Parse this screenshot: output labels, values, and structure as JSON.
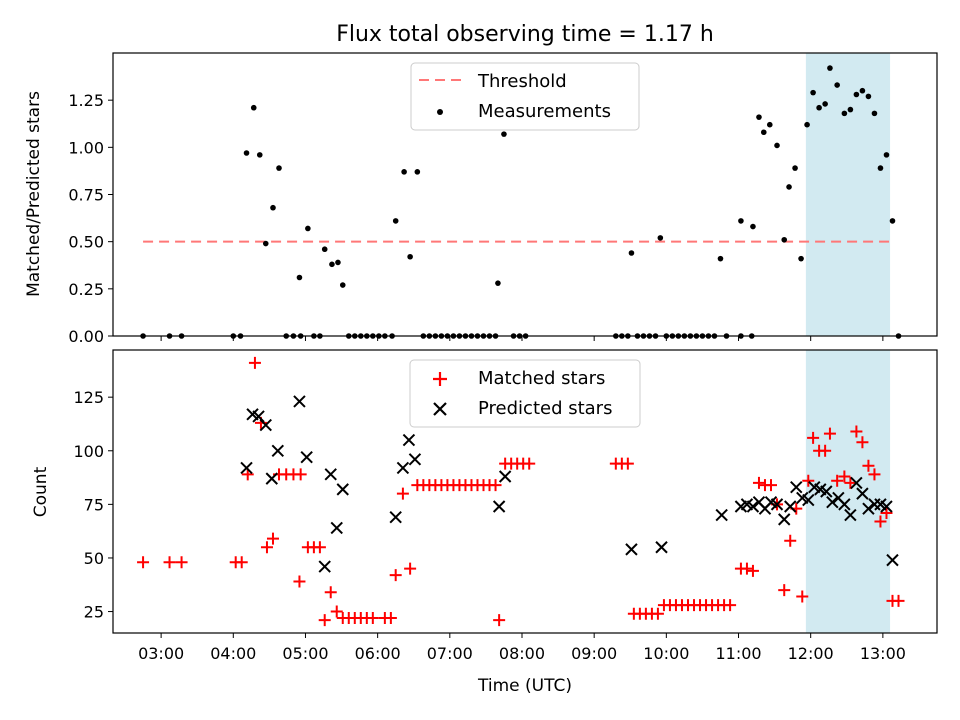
{
  "title": "Flux total observing time = 1.17 h",
  "colors": {
    "threshold": "#ff7777",
    "measurement": "#000000",
    "matched": "#ff0000",
    "predicted": "#000000",
    "highlight": "#add8e6"
  },
  "chart_data": [
    {
      "type": "scatter",
      "ylabel": "Matched/Predicted stars",
      "xlim": [
        "02:20",
        "13:45"
      ],
      "ylim": [
        0,
        1.5
      ],
      "yticks": [
        "0.00",
        "0.25",
        "0.50",
        "0.75",
        "1.00",
        "1.25"
      ],
      "legend": {
        "placement": "top-center",
        "entries": [
          "Threshold",
          "Measurements"
        ]
      },
      "threshold": {
        "name": "Threshold",
        "value": 0.5,
        "x_start": "02:45",
        "x_end": "13:10"
      },
      "highlight": {
        "x_start": "11:56",
        "x_end": "13:06"
      },
      "series": [
        {
          "name": "Measurements",
          "points": [
            [
              "02:45",
              0
            ],
            [
              "03:07",
              0
            ],
            [
              "03:17",
              0
            ],
            [
              "04:00",
              0
            ],
            [
              "04:06",
              0
            ],
            [
              "04:11",
              0.97
            ],
            [
              "04:17",
              1.21
            ],
            [
              "04:22",
              0.96
            ],
            [
              "04:27",
              0.49
            ],
            [
              "04:33",
              0.68
            ],
            [
              "04:38",
              0.89
            ],
            [
              "04:44",
              0
            ],
            [
              "04:50",
              0
            ],
            [
              "04:55",
              0.31
            ],
            [
              "04:56",
              0
            ],
            [
              "05:02",
              0.57
            ],
            [
              "05:07",
              0
            ],
            [
              "05:12",
              0
            ],
            [
              "05:16",
              0.46
            ],
            [
              "05:22",
              0.38
            ],
            [
              "05:27",
              0.39
            ],
            [
              "05:31",
              0.27
            ],
            [
              "05:36",
              0
            ],
            [
              "05:41",
              0
            ],
            [
              "05:46",
              0
            ],
            [
              "05:51",
              0
            ],
            [
              "05:56",
              0
            ],
            [
              "06:01",
              0
            ],
            [
              "06:06",
              0
            ],
            [
              "06:12",
              0
            ],
            [
              "06:15",
              0.61
            ],
            [
              "06:22",
              0.87
            ],
            [
              "06:27",
              0.42
            ],
            [
              "06:33",
              0.87
            ],
            [
              "06:38",
              0
            ],
            [
              "06:43",
              0
            ],
            [
              "06:48",
              0
            ],
            [
              "06:53",
              0
            ],
            [
              "06:58",
              0
            ],
            [
              "07:03",
              0
            ],
            [
              "07:08",
              0
            ],
            [
              "07:13",
              0
            ],
            [
              "07:18",
              0
            ],
            [
              "07:23",
              0
            ],
            [
              "07:28",
              0
            ],
            [
              "07:33",
              0
            ],
            [
              "07:38",
              0
            ],
            [
              "07:40",
              0.28
            ],
            [
              "07:45",
              1.07
            ],
            [
              "07:53",
              0
            ],
            [
              "07:58",
              0
            ],
            [
              "08:03",
              0
            ],
            [
              "09:18",
              0
            ],
            [
              "09:23",
              0
            ],
            [
              "09:28",
              0
            ],
            [
              "09:31",
              0.44
            ],
            [
              "09:36",
              0
            ],
            [
              "09:41",
              0
            ],
            [
              "09:46",
              0
            ],
            [
              "09:51",
              0
            ],
            [
              "09:55",
              0.52
            ],
            [
              "10:00",
              0
            ],
            [
              "10:05",
              0
            ],
            [
              "10:10",
              0
            ],
            [
              "10:15",
              0
            ],
            [
              "10:20",
              0
            ],
            [
              "10:25",
              0
            ],
            [
              "10:30",
              0
            ],
            [
              "10:35",
              0
            ],
            [
              "10:40",
              0
            ],
            [
              "10:45",
              0.41
            ],
            [
              "10:50",
              0
            ],
            [
              "11:02",
              0.61
            ],
            [
              "11:02",
              0
            ],
            [
              "11:11",
              0
            ],
            [
              "11:12",
              0.58
            ],
            [
              "11:17",
              1.16
            ],
            [
              "11:21",
              1.08
            ],
            [
              "11:26",
              1.12
            ],
            [
              "11:32",
              1.01
            ],
            [
              "11:38",
              0.51
            ],
            [
              "11:42",
              0.79
            ],
            [
              "11:47",
              0.89
            ],
            [
              "11:52",
              0.41
            ],
            [
              "11:57",
              1.12
            ],
            [
              "12:02",
              1.29
            ],
            [
              "12:07",
              1.21
            ],
            [
              "12:12",
              1.23
            ],
            [
              "12:16",
              1.42
            ],
            [
              "12:22",
              1.33
            ],
            [
              "12:28",
              1.18
            ],
            [
              "12:33",
              1.2
            ],
            [
              "12:38",
              1.28
            ],
            [
              "12:43",
              1.3
            ],
            [
              "12:48",
              1.27
            ],
            [
              "12:53",
              1.18
            ],
            [
              "12:58",
              0.89
            ],
            [
              "13:03",
              0.96
            ],
            [
              "13:08",
              0.61
            ],
            [
              "13:13",
              0
            ]
          ]
        }
      ]
    },
    {
      "type": "scatter",
      "xlabel": "Time (UTC)",
      "ylabel": "Count",
      "xlim": [
        "02:20",
        "13:45"
      ],
      "ylim": [
        15,
        147
      ],
      "xticks": [
        "03:00",
        "04:00",
        "05:00",
        "06:00",
        "07:00",
        "08:00",
        "09:00",
        "10:00",
        "11:00",
        "12:00",
        "13:00"
      ],
      "yticks": [
        "25",
        "50",
        "75",
        "100",
        "125"
      ],
      "legend": {
        "placement": "top-center",
        "entries": [
          "Matched stars",
          "Predicted stars"
        ]
      },
      "highlight": {
        "x_start": "11:56",
        "x_end": "13:06"
      },
      "series": [
        {
          "name": "Matched stars",
          "points": [
            [
              "02:45",
              48
            ],
            [
              "03:07",
              48
            ],
            [
              "03:17",
              48
            ],
            [
              "04:02",
              48
            ],
            [
              "04:07",
              48
            ],
            [
              "04:12",
              89
            ],
            [
              "04:18",
              141
            ],
            [
              "04:23",
              113
            ],
            [
              "04:28",
              55
            ],
            [
              "04:33",
              59
            ],
            [
              "04:38",
              89
            ],
            [
              "04:44",
              89
            ],
            [
              "04:50",
              89
            ],
            [
              "04:55",
              39
            ],
            [
              "04:56",
              89
            ],
            [
              "05:02",
              55
            ],
            [
              "05:07",
              55
            ],
            [
              "05:12",
              55
            ],
            [
              "05:16",
              21
            ],
            [
              "05:21",
              34
            ],
            [
              "05:26",
              25
            ],
            [
              "05:31",
              22
            ],
            [
              "05:36",
              22
            ],
            [
              "05:41",
              22
            ],
            [
              "05:46",
              22
            ],
            [
              "05:51",
              22
            ],
            [
              "05:56",
              22
            ],
            [
              "06:06",
              22
            ],
            [
              "06:11",
              22
            ],
            [
              "06:15",
              42
            ],
            [
              "06:21",
              80
            ],
            [
              "06:27",
              45
            ],
            [
              "06:33",
              84
            ],
            [
              "06:38",
              84
            ],
            [
              "06:43",
              84
            ],
            [
              "06:48",
              84
            ],
            [
              "06:53",
              84
            ],
            [
              "06:58",
              84
            ],
            [
              "07:03",
              84
            ],
            [
              "07:08",
              84
            ],
            [
              "07:13",
              84
            ],
            [
              "07:18",
              84
            ],
            [
              "07:23",
              84
            ],
            [
              "07:28",
              84
            ],
            [
              "07:33",
              84
            ],
            [
              "07:38",
              84
            ],
            [
              "07:41",
              21
            ],
            [
              "07:46",
              94
            ],
            [
              "07:51",
              94
            ],
            [
              "07:56",
              94
            ],
            [
              "08:01",
              94
            ],
            [
              "08:06",
              94
            ],
            [
              "09:18",
              94
            ],
            [
              "09:23",
              94
            ],
            [
              "09:28",
              94
            ],
            [
              "09:33",
              24
            ],
            [
              "09:38",
              24
            ],
            [
              "09:43",
              24
            ],
            [
              "09:48",
              24
            ],
            [
              "09:53",
              24
            ],
            [
              "09:58",
              28
            ],
            [
              "10:03",
              28
            ],
            [
              "10:08",
              28
            ],
            [
              "10:13",
              28
            ],
            [
              "10:18",
              28
            ],
            [
              "10:23",
              28
            ],
            [
              "10:28",
              28
            ],
            [
              "10:33",
              28
            ],
            [
              "10:38",
              28
            ],
            [
              "10:43",
              28
            ],
            [
              "10:48",
              28
            ],
            [
              "10:53",
              28
            ],
            [
              "11:02",
              45
            ],
            [
              "11:07",
              45
            ],
            [
              "11:12",
              44
            ],
            [
              "11:17",
              85
            ],
            [
              "11:22",
              84
            ],
            [
              "11:27",
              84
            ],
            [
              "11:32",
              75
            ],
            [
              "11:38",
              35
            ],
            [
              "11:43",
              58
            ],
            [
              "11:48",
              73
            ],
            [
              "11:53",
              32
            ],
            [
              "11:58",
              86
            ],
            [
              "12:02",
              106
            ],
            [
              "12:07",
              100
            ],
            [
              "12:12",
              100
            ],
            [
              "12:16",
              108
            ],
            [
              "12:22",
              86
            ],
            [
              "12:28",
              88
            ],
            [
              "12:33",
              85
            ],
            [
              "12:38",
              109
            ],
            [
              "12:43",
              104
            ],
            [
              "12:48",
              93
            ],
            [
              "12:53",
              89
            ],
            [
              "12:58",
              67
            ],
            [
              "13:03",
              71
            ],
            [
              "13:08",
              30
            ],
            [
              "13:13",
              30
            ]
          ]
        },
        {
          "name": "Predicted stars",
          "points": [
            [
              "04:11",
              92
            ],
            [
              "04:16",
              117
            ],
            [
              "04:21",
              116
            ],
            [
              "04:27",
              112
            ],
            [
              "04:32",
              87
            ],
            [
              "04:37",
              100
            ],
            [
              "04:55",
              123
            ],
            [
              "05:01",
              97
            ],
            [
              "05:16",
              46
            ],
            [
              "05:21",
              89
            ],
            [
              "05:26",
              64
            ],
            [
              "05:31",
              82
            ],
            [
              "06:15",
              69
            ],
            [
              "06:21",
              92
            ],
            [
              "06:26",
              105
            ],
            [
              "06:31",
              96
            ],
            [
              "07:41",
              74
            ],
            [
              "07:46",
              88
            ],
            [
              "09:31",
              54
            ],
            [
              "09:56",
              55
            ],
            [
              "10:46",
              70
            ],
            [
              "11:02",
              74
            ],
            [
              "11:07",
              75
            ],
            [
              "11:12",
              74
            ],
            [
              "11:17",
              76
            ],
            [
              "11:22",
              73
            ],
            [
              "11:27",
              76
            ],
            [
              "11:32",
              75
            ],
            [
              "11:38",
              68
            ],
            [
              "11:43",
              74
            ],
            [
              "11:48",
              83
            ],
            [
              "11:53",
              78
            ],
            [
              "11:58",
              77
            ],
            [
              "12:03",
              83
            ],
            [
              "12:08",
              82
            ],
            [
              "12:13",
              81
            ],
            [
              "12:18",
              76
            ],
            [
              "12:23",
              78
            ],
            [
              "12:28",
              75
            ],
            [
              "12:33",
              70
            ],
            [
              "12:38",
              85
            ],
            [
              "12:43",
              80
            ],
            [
              "12:48",
              73
            ],
            [
              "12:53",
              75
            ],
            [
              "12:58",
              75
            ],
            [
              "13:03",
              74
            ],
            [
              "13:08",
              49
            ]
          ]
        }
      ]
    }
  ]
}
